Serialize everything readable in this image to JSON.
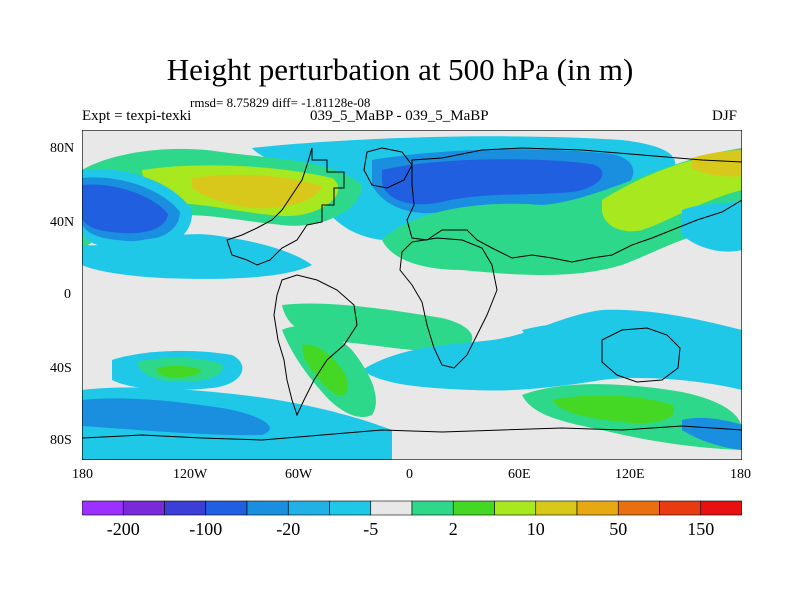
{
  "figure": {
    "title": "Height perturbation at 500 hPa (in m)",
    "stats": "rmsd= 8.75829 diff= -1.81128e-08",
    "experiment": "Expt = texpi-texki",
    "comparison": "039_5_MaBP - 039_5_MaBP",
    "season": "DJF"
  },
  "axes": {
    "lat_labels": [
      "80N",
      "40N",
      "0",
      "40S",
      "80S"
    ],
    "lon_labels": [
      "180",
      "120W",
      "60W",
      "0",
      "60E",
      "120E",
      "180"
    ]
  },
  "colorbar": {
    "colors": [
      "#9b30ff",
      "#7a2bd9",
      "#3b3fd8",
      "#2060e0",
      "#1a8fe0",
      "#21b1e6",
      "#20c8e8",
      "#e8e8e8",
      "#2ed88a",
      "#44d824",
      "#a8e81e",
      "#d8c81c",
      "#e8a814",
      "#e87010",
      "#e83c10",
      "#e81010"
    ],
    "labels": [
      "-200",
      "-100",
      "-20",
      "-5",
      "2",
      "10",
      "50",
      "150"
    ]
  },
  "field_colors": {
    "bg": "#e8e8e8",
    "cyan": "#20c8e8",
    "lblue": "#1a8fe0",
    "blue": "#2060e0",
    "dblue": "#3b3fd8",
    "green": "#2ed88a",
    "lgreen": "#44d824",
    "yellowgreen": "#a8e81e",
    "olive": "#d8c81c",
    "orange": "#e8a814"
  }
}
